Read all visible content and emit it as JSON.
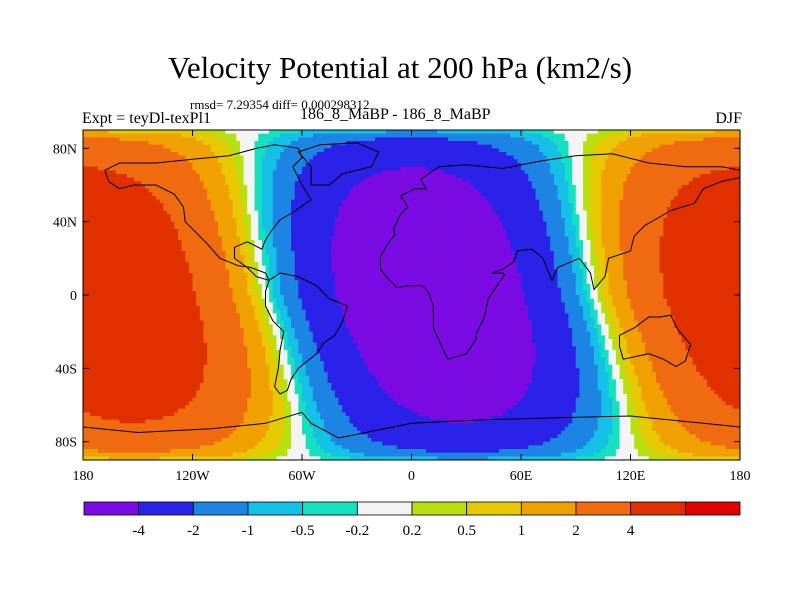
{
  "header": {
    "title": "Velocity Potential at 200 hPa (km2/s)",
    "rmsd_line": "rmsd= 7.29354 diff= 0.000298312",
    "left_label": "Expt = teyDl-texPl1",
    "center_label": "186_8_MaBP - 186_8_MaBP",
    "right_label": "DJF"
  },
  "colors": {
    "levels_fill": [
      "#7b0be3",
      "#2a22e8",
      "#1d84e4",
      "#14c0e6",
      "#15e0c0",
      "#f4f4f4",
      "#b8e010",
      "#e8c800",
      "#f0a000",
      "#f06a10",
      "#e03000",
      "#e00000"
    ],
    "coast": "#000000",
    "frame": "#000000"
  },
  "chart_data": {
    "type": "filled_contour_map",
    "title": "Velocity Potential at 200 hPa (km2/s)",
    "subtitle": "rmsd= 7.29354 diff= 0.000298312",
    "xlabel": "",
    "ylabel": "",
    "xlim": [
      -180,
      180
    ],
    "ylim": [
      -90,
      90
    ],
    "x_ticks": [
      -180,
      -120,
      -60,
      0,
      60,
      120,
      180
    ],
    "x_tick_labels": [
      "180",
      "120W",
      "60W",
      "0",
      "60E",
      "120E",
      "180"
    ],
    "y_ticks": [
      80,
      40,
      0,
      -40,
      -80
    ],
    "y_tick_labels": [
      "80N",
      "40N",
      "0",
      "40S",
      "80S"
    ],
    "colorbar": {
      "levels": [
        -4,
        -2,
        -1,
        -0.5,
        -0.2,
        0.2,
        0.5,
        1,
        2,
        4
      ],
      "labels": [
        "-4",
        "-2",
        "-1",
        "-0.5",
        "-0.2",
        "0.2",
        "0.5",
        "1",
        "2",
        "4"
      ]
    },
    "field": {
      "description": "Negative (divergent) centre over Africa/Europe/Eurasia; positive (convergent) centre over the Pacific",
      "centers": [
        {
          "lon": 10,
          "lat": 0,
          "value": -5.5
        },
        {
          "lon": -170,
          "lat": 0,
          "value": 5.5
        }
      ]
    }
  }
}
